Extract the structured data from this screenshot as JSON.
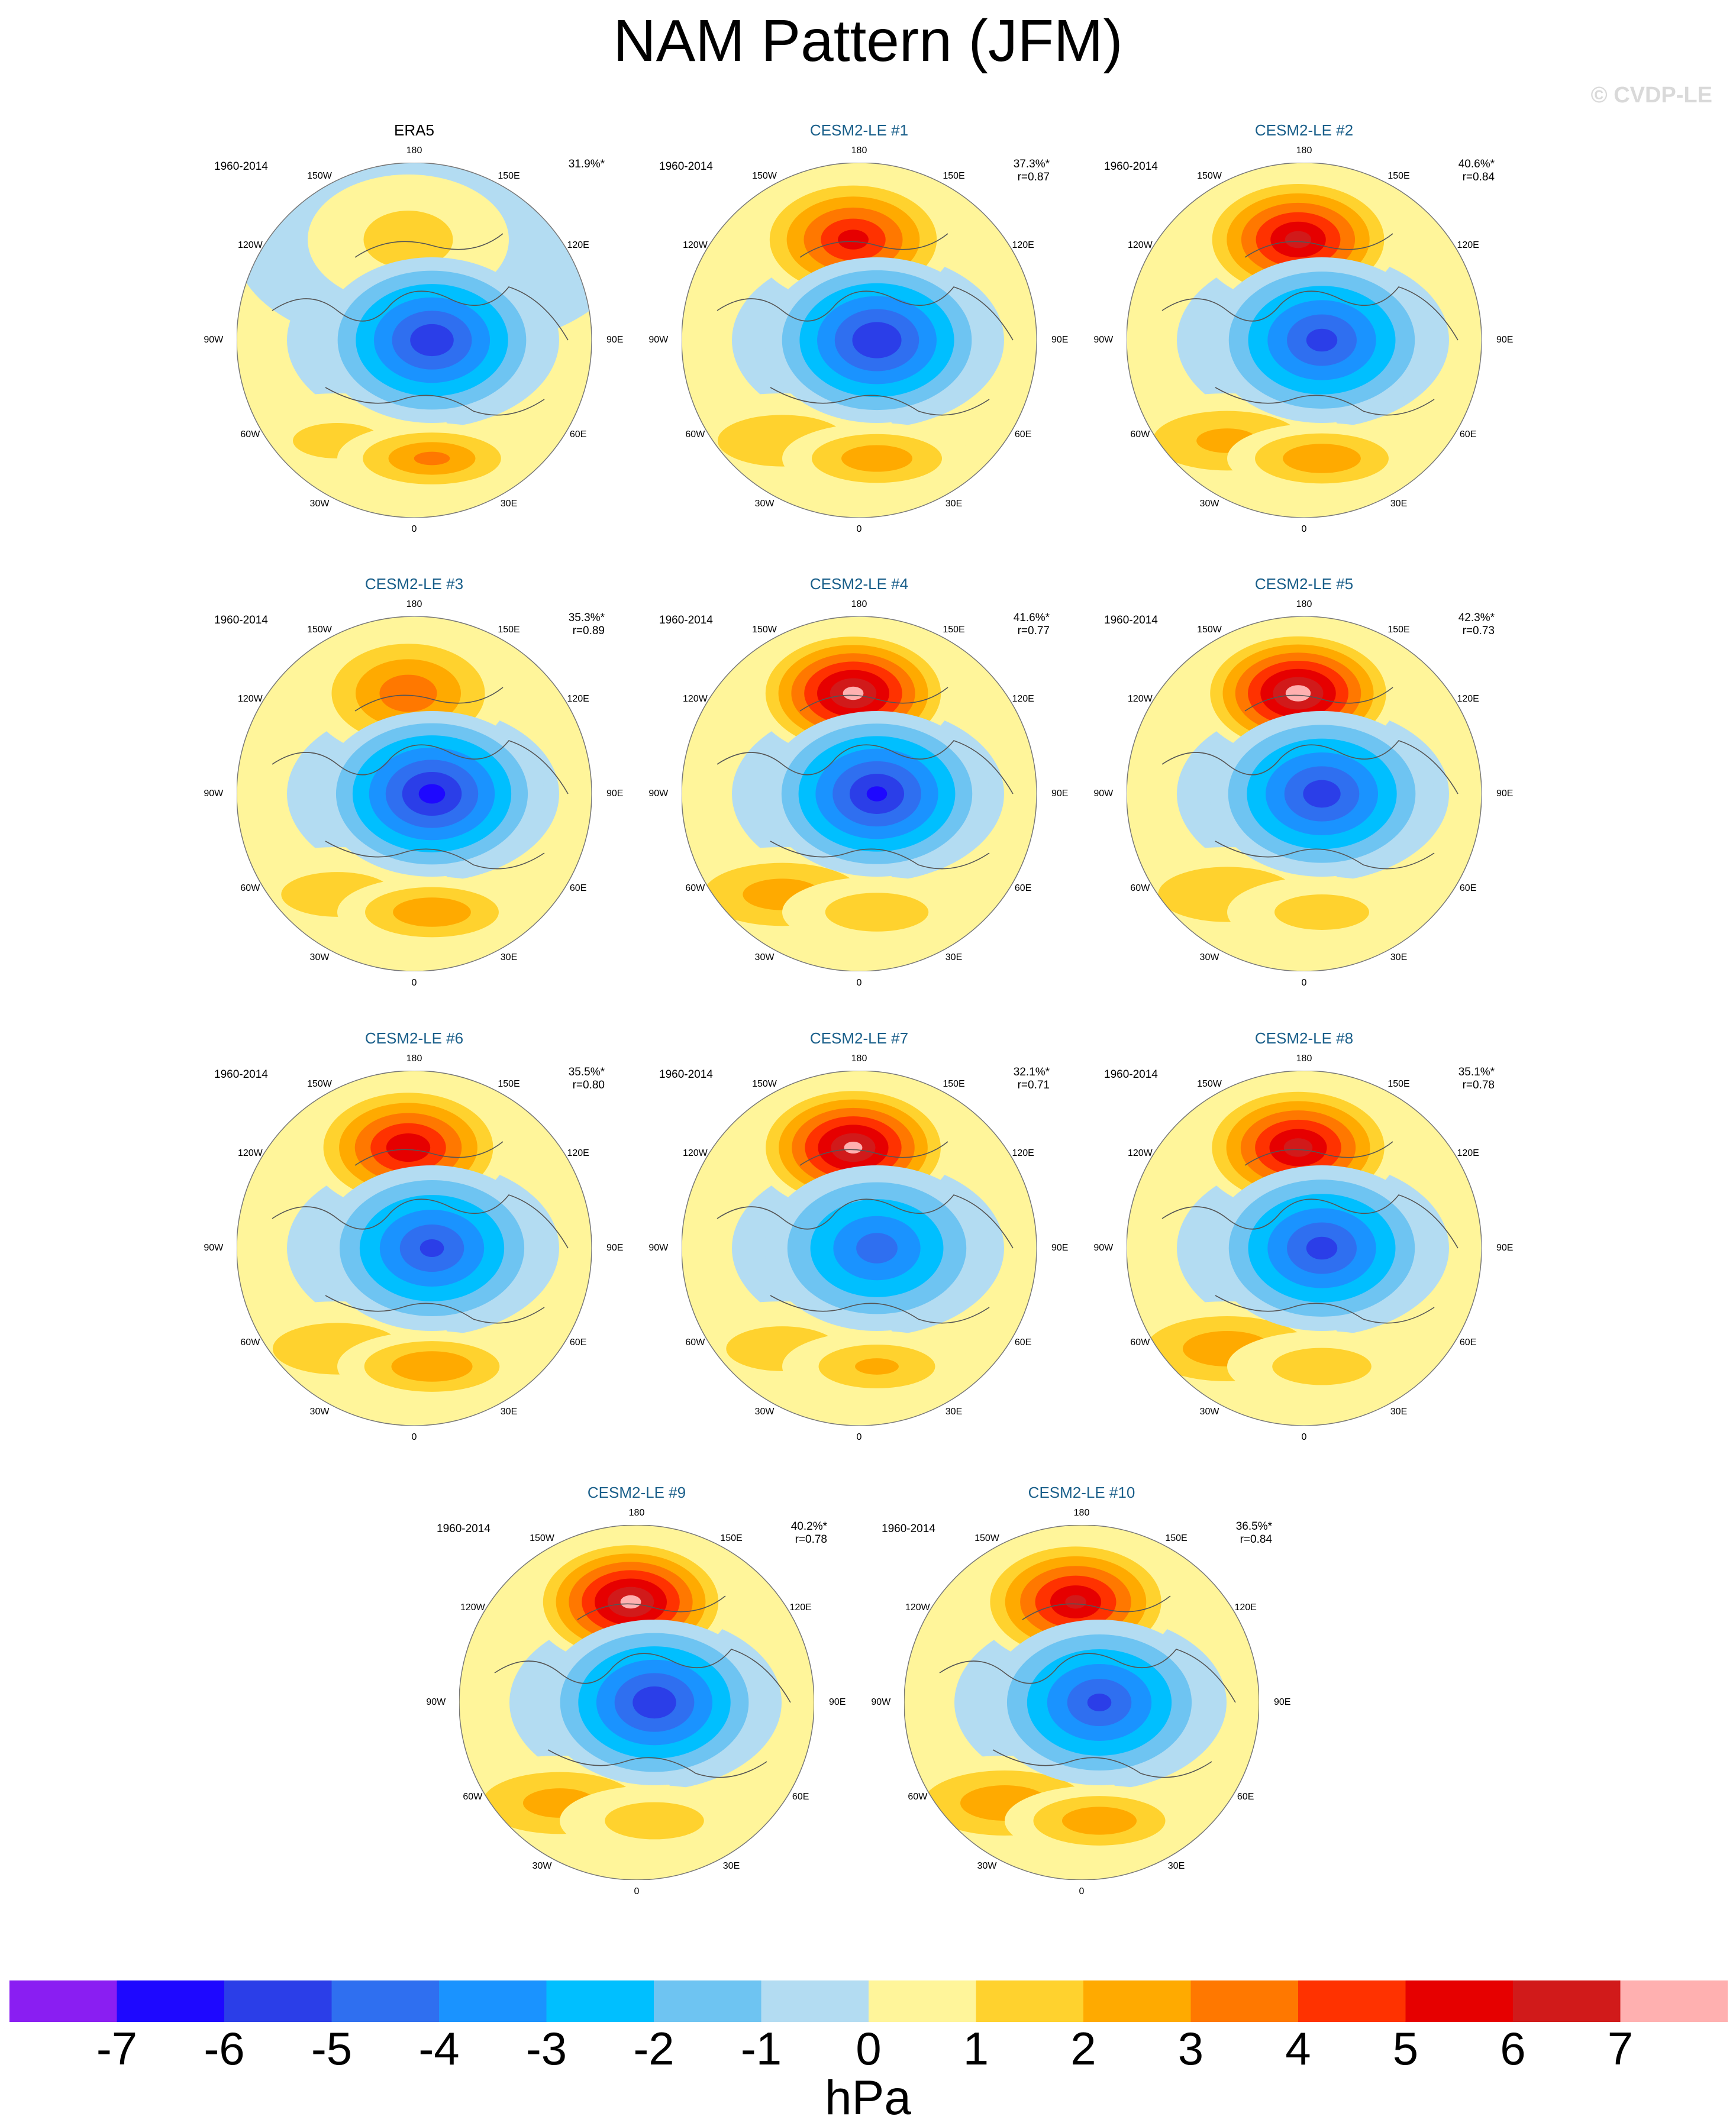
{
  "title": "NAM Pattern (JFM)",
  "copyright": "© CVDP-LE",
  "period": "1960-2014",
  "lon_labels": [
    "180",
    "150E",
    "120E",
    "90E",
    "60E",
    "30E",
    "0",
    "30W",
    "60W",
    "90W",
    "120W",
    "150W"
  ],
  "panels": [
    {
      "name": "ERA5",
      "pct": "31.9%*",
      "r": "",
      "obs": true,
      "pos_amp": 1.2,
      "neg_amp": 5.6,
      "euro_amp": 3.1,
      "atl_amp": 1.0
    },
    {
      "name": "CESM2-LE #1",
      "pct": "37.3%*",
      "r": "r=0.87",
      "obs": false,
      "pos_amp": 5.3,
      "neg_amp": 5.8,
      "euro_amp": 2.6,
      "atl_amp": 1.6
    },
    {
      "name": "CESM2-LE #2",
      "pct": "40.6%*",
      "r": "r=0.84",
      "obs": false,
      "pos_amp": 6.3,
      "neg_amp": 5.2,
      "euro_amp": 2.8,
      "atl_amp": 2.1
    },
    {
      "name": "CESM2-LE #3",
      "pct": "35.3%*",
      "r": "r=0.89",
      "obs": false,
      "pos_amp": 3.6,
      "neg_amp": 6.2,
      "euro_amp": 2.8,
      "atl_amp": 1.3
    },
    {
      "name": "CESM2-LE #4",
      "pct": "41.6%*",
      "r": "r=0.77",
      "obs": false,
      "pos_amp": 7.2,
      "neg_amp": 6.0,
      "euro_amp": 1.6,
      "atl_amp": 2.4
    },
    {
      "name": "CESM2-LE #5",
      "pct": "42.3%*",
      "r": "r=0.73",
      "obs": false,
      "pos_amp": 7.4,
      "neg_amp": 5.4,
      "euro_amp": 1.4,
      "atl_amp": 1.8
    },
    {
      "name": "CESM2-LE #6",
      "pct": "35.5%*",
      "r": "r=0.80",
      "obs": false,
      "pos_amp": 5.8,
      "neg_amp": 5.0,
      "euro_amp": 2.9,
      "atl_amp": 1.6
    },
    {
      "name": "CESM2-LE #7",
      "pct": "32.1%*",
      "r": "r=0.71",
      "obs": false,
      "pos_amp": 7.1,
      "neg_amp": 4.3,
      "euro_amp": 2.0,
      "atl_amp": 1.3
    },
    {
      "name": "CESM2-LE #8",
      "pct": "35.1%*",
      "r": "r=0.78",
      "obs": false,
      "pos_amp": 6.4,
      "neg_amp": 5.2,
      "euro_amp": 1.5,
      "atl_amp": 2.6
    },
    {
      "name": "CESM2-LE #9",
      "pct": "40.2%*",
      "r": "r=0.78",
      "obs": false,
      "pos_amp": 7.2,
      "neg_amp": 5.6,
      "euro_amp": 1.5,
      "atl_amp": 2.3
    },
    {
      "name": "CESM2-LE #10",
      "pct": "36.5%*",
      "r": "r=0.84",
      "obs": false,
      "pos_amp": 6.1,
      "neg_amp": 5.0,
      "euro_amp": 2.7,
      "atl_amp": 2.6
    }
  ],
  "colorbar": {
    "unit": "hPa",
    "ticks": [
      "-7",
      "-6",
      "-5",
      "-4",
      "-3",
      "-2",
      "-1",
      "0",
      "1",
      "2",
      "3",
      "4",
      "5",
      "6",
      "7"
    ],
    "colors": [
      "#8a1ef2",
      "#1e08ff",
      "#2b3ee8",
      "#2f6ff0",
      "#1a93ff",
      "#00bfff",
      "#6ec4f2",
      "#b3dcf2",
      "#fff59a",
      "#ffd22e",
      "#ffaa00",
      "#ff7800",
      "#ff3200",
      "#e60000",
      "#d11a1a",
      "#ffb0b0"
    ]
  }
}
